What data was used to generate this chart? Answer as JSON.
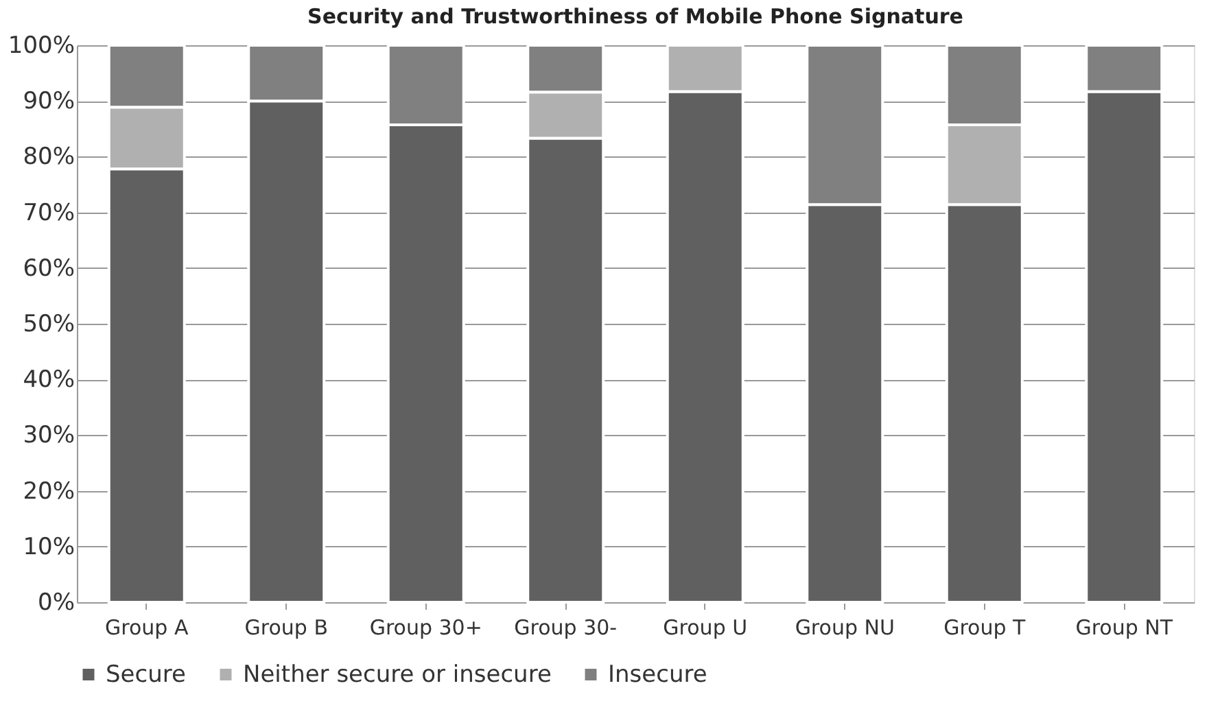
{
  "chart_data": {
    "type": "bar",
    "title": "Security and Trustworthiness of Mobile Phone Signature",
    "categories": [
      "Group A",
      "Group B",
      "Group 30+",
      "Group 30-",
      "Group U",
      "Group NU",
      "Group T",
      "Group NT"
    ],
    "series": [
      {
        "name": "Secure",
        "color": "#606060",
        "values": [
          77.8,
          90.0,
          85.7,
          83.3,
          91.7,
          71.4,
          71.4,
          91.7
        ]
      },
      {
        "name": "Neither secure or insecure",
        "color": "#b0b0b0",
        "values": [
          11.1,
          0,
          0,
          8.3,
          8.3,
          0,
          14.3,
          0
        ]
      },
      {
        "name": "Insecure",
        "color": "#808080",
        "values": [
          11.1,
          10.0,
          14.3,
          8.4,
          0,
          28.6,
          14.3,
          8.3
        ]
      }
    ],
    "stacked": true,
    "ylim": [
      0,
      100
    ],
    "yticks": [
      {
        "value": 0,
        "label": "0%"
      },
      {
        "value": 10,
        "label": "10%"
      },
      {
        "value": 20,
        "label": "20%"
      },
      {
        "value": 30,
        "label": "30%"
      },
      {
        "value": 40,
        "label": "40%"
      },
      {
        "value": 50,
        "label": "50%"
      },
      {
        "value": 60,
        "label": "60%"
      },
      {
        "value": 70,
        "label": "70%"
      },
      {
        "value": 80,
        "label": "80%"
      },
      {
        "value": 90,
        "label": "90%"
      },
      {
        "value": 100,
        "label": "100%"
      }
    ],
    "grid": "y",
    "legend": "bottom"
  }
}
